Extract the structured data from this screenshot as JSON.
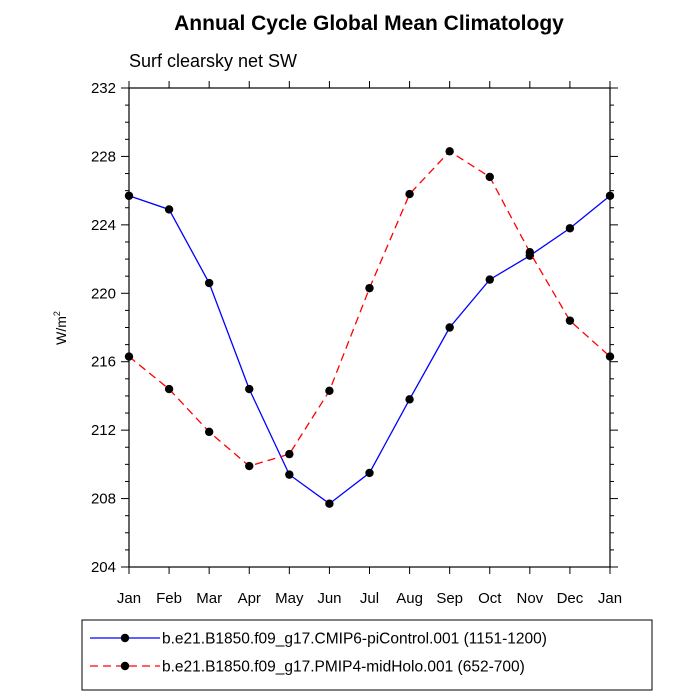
{
  "chart_data": {
    "type": "line",
    "title": "Annual Cycle Global Mean Climatology",
    "subtitle": "Surf clearsky net SW",
    "ylabel": "W/m",
    "ylabel_sup": "2",
    "xlabel": "",
    "categories": [
      "Jan",
      "Feb",
      "Mar",
      "Apr",
      "May",
      "Jun",
      "Jul",
      "Aug",
      "Sep",
      "Oct",
      "Nov",
      "Dec",
      "Jan"
    ],
    "ylim": [
      204,
      232
    ],
    "yticks": [
      204,
      208,
      212,
      216,
      220,
      224,
      228,
      232
    ],
    "grid": false,
    "legend_position": "bottom",
    "series": [
      {
        "name": "b.e21.B1850.f09_g17.CMIP6-piControl.001 (1151-1200)",
        "color": "#0000ff",
        "dash": "solid",
        "marker": "filled-circle",
        "values": [
          225.7,
          224.9,
          220.6,
          214.4,
          209.4,
          207.7,
          209.5,
          213.8,
          218.0,
          220.8,
          222.2,
          223.8,
          225.7
        ]
      },
      {
        "name": "b.e21.B1850.f09_g17.PMIP4-midHolo.001 (652-700)",
        "color": "#ff0000",
        "dash": "dashed",
        "marker": "filled-circle",
        "values": [
          216.3,
          214.4,
          211.9,
          209.9,
          210.6,
          214.3,
          220.3,
          225.8,
          228.3,
          226.8,
          222.4,
          218.4,
          216.3
        ]
      }
    ]
  }
}
